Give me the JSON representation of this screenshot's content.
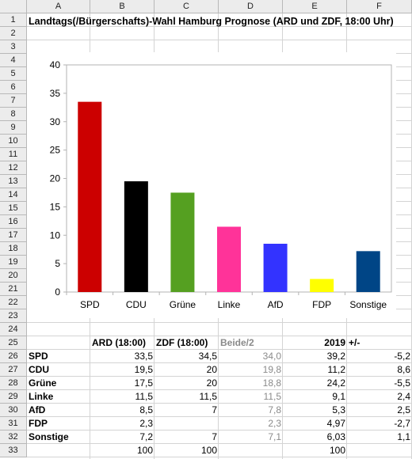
{
  "columns": [
    "A",
    "B",
    "C",
    "D",
    "E",
    "F"
  ],
  "rows": [
    "1",
    "2",
    "3",
    "4",
    "5",
    "6",
    "7",
    "8",
    "9",
    "10",
    "11",
    "12",
    "13",
    "14",
    "15",
    "16",
    "17",
    "18",
    "19",
    "20",
    "21",
    "22",
    "23",
    "24",
    "25",
    "26",
    "27",
    "28",
    "29",
    "30",
    "31",
    "32",
    "33"
  ],
  "title": "Landtags(/Bürgerschafts)-Wahl Hamburg Prognose (ARD und ZDF, 18:00 Uhr)",
  "chart_data": {
    "type": "bar",
    "categories": [
      "SPD",
      "CDU",
      "Grüne",
      "Linke",
      "AfD",
      "FDP",
      "Sonstige"
    ],
    "values": [
      33.5,
      19.5,
      17.5,
      11.5,
      8.5,
      2.3,
      7.2
    ],
    "colors": [
      "#cc0000",
      "#000000",
      "#55a021",
      "#ff3399",
      "#3333ff",
      "#ffff00",
      "#004586"
    ],
    "ylim": [
      0,
      40
    ],
    "yticks": [
      "0",
      "5",
      "10",
      "15",
      "20",
      "25",
      "30",
      "35",
      "40"
    ],
    "grid": false,
    "legend": "none"
  },
  "table": {
    "header": {
      "b": "ARD (18:00)",
      "c": "ZDF (18:00)",
      "d": "Beide/2",
      "e": "2019",
      "f": "+/-"
    },
    "rows": [
      {
        "party": "SPD",
        "ard": "33,5",
        "zdf": "34,5",
        "beide": "34,0",
        "y2019": "39,2",
        "diff": "-5,2"
      },
      {
        "party": "CDU",
        "ard": "19,5",
        "zdf": "20",
        "beide": "19,8",
        "y2019": "11,2",
        "diff": "8,6"
      },
      {
        "party": "Grüne",
        "ard": "17,5",
        "zdf": "20",
        "beide": "18,8",
        "y2019": "24,2",
        "diff": "-5,5"
      },
      {
        "party": "Linke",
        "ard": "11,5",
        "zdf": "11,5",
        "beide": "11,5",
        "y2019": "9,1",
        "diff": "2,4"
      },
      {
        "party": "AfD",
        "ard": "8,5",
        "zdf": "7",
        "beide": "7,8",
        "y2019": "5,3",
        "diff": "2,5"
      },
      {
        "party": "FDP",
        "ard": "2,3",
        "zdf": "",
        "beide": "2,3",
        "y2019": "4,97",
        "diff": "-2,7"
      },
      {
        "party": "Sonstige",
        "ard": "7,2",
        "zdf": "7",
        "beide": "7,1",
        "y2019": "6,03",
        "diff": "1,1"
      }
    ],
    "totals": {
      "ard": "100",
      "zdf": "100",
      "y2019": "100"
    }
  }
}
